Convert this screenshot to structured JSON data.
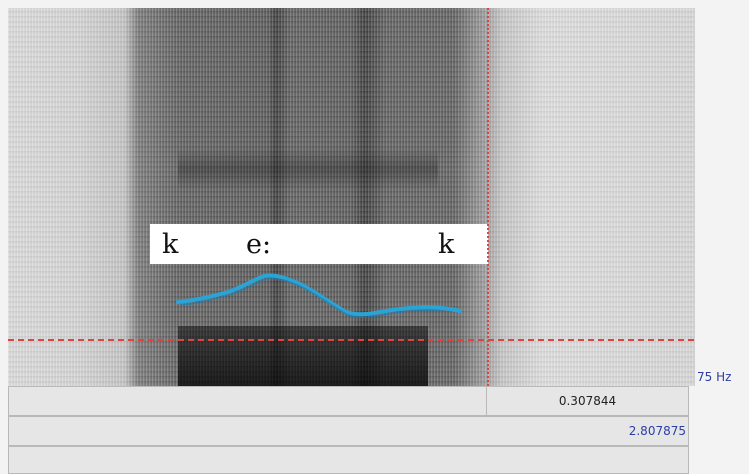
{
  "spectrogram": {
    "segments": [
      "k",
      "e:",
      "k"
    ],
    "pitch_floor_label": "75 Hz",
    "cursor_color": "#e0443f",
    "pitch_color": "#2aa3d6"
  },
  "time_bar": {
    "selection_duration": "0.307844",
    "total_duration": "2.807875"
  }
}
